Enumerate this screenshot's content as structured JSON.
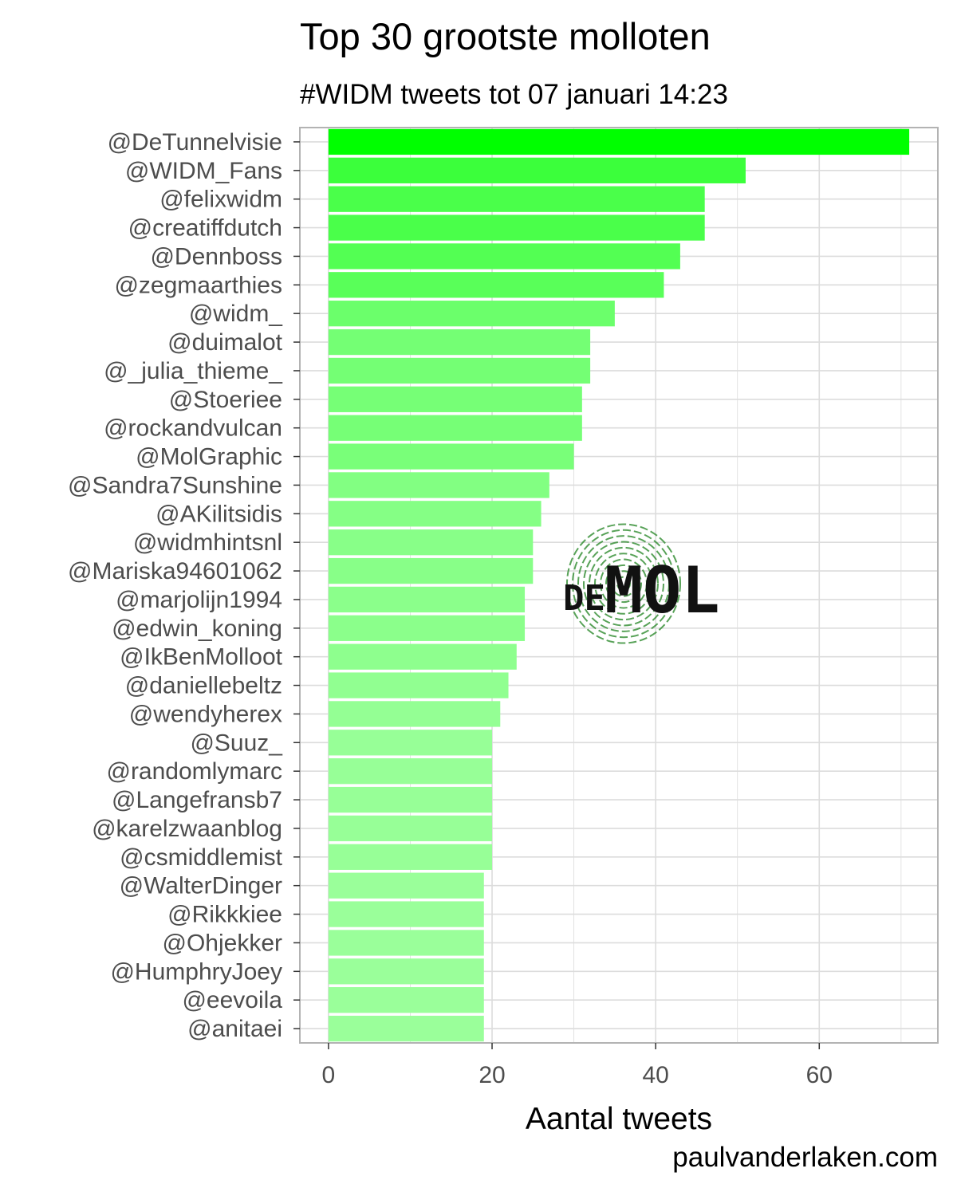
{
  "chart_data": {
    "type": "bar",
    "orientation": "horizontal",
    "title": "Top 30 grootste molloten",
    "subtitle": "#WIDM tweets tot 07 januari 14:23",
    "xlabel": "Aantal tweets",
    "ylabel": "",
    "caption": "paulvanderlaken.com",
    "xlim": [
      -3.5,
      74.5
    ],
    "xticks": [
      0,
      20,
      40,
      60
    ],
    "grid": true,
    "legend": "none",
    "colors": {
      "max": "#00ff00",
      "min": "#9aff9a",
      "grid": "#dcdcdc",
      "border": "#b3b3b3",
      "label": "#4d4d4d"
    },
    "categories": [
      "@DeTunnelvisie",
      "@WIDM_Fans",
      "@felixwidm",
      "@creatiffdutch",
      "@Dennboss",
      "@zegmaarthies",
      "@widm_",
      "@duimalot",
      "@_julia_thieme_",
      "@Stoeriee",
      "@rockandvulcan",
      "@MolGraphic",
      "@Sandra7Sunshine",
      "@AKilitsidis",
      "@widmhintsnl",
      "@Mariska94601062",
      "@marjolijn1994",
      "@edwin_koning",
      "@IkBenMolloot",
      "@daniellebeltz",
      "@wendyherex",
      "@Suuz_",
      "@randomlymarc",
      "@Langefransb7",
      "@karelzwaanblog",
      "@csmiddlemist",
      "@WalterDinger",
      "@Rikkkiee",
      "@Ohjekker",
      "@HumphryJoey",
      "@eevoila",
      "@anitaei"
    ],
    "values": [
      71,
      51,
      46,
      46,
      43,
      41,
      35,
      32,
      32,
      31,
      31,
      30,
      27,
      26,
      25,
      25,
      24,
      24,
      23,
      22,
      21,
      20,
      20,
      20,
      20,
      20,
      19,
      19,
      19,
      19,
      19,
      19
    ]
  },
  "logo": {
    "text_small": "DE",
    "text_large": "MOL",
    "accent": "#2e8b2e"
  }
}
